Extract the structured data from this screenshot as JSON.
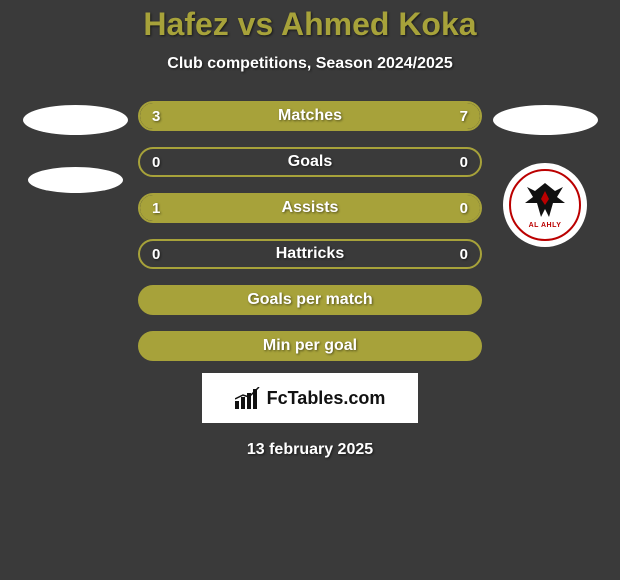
{
  "title": "Hafez vs Ahmed Koka",
  "subtitle": "Club competitions, Season 2024/2025",
  "date": "13 february 2025",
  "brand": "FcTables.com",
  "colors": {
    "accent": "#a7a23a",
    "accent_dark": "#8d8830",
    "background": "#3a3a3a",
    "title_color": "#a7a23a",
    "bar_border": "#a7a23a",
    "bar_fill": "#a7a23a",
    "text": "#ffffff"
  },
  "bars": [
    {
      "label": "Matches",
      "left": "3",
      "right": "7",
      "left_pct": 30,
      "right_pct": 70
    },
    {
      "label": "Goals",
      "left": "0",
      "right": "0",
      "left_pct": 0,
      "right_pct": 0
    },
    {
      "label": "Assists",
      "left": "1",
      "right": "0",
      "left_pct": 100,
      "right_pct": 0
    },
    {
      "label": "Hattricks",
      "left": "0",
      "right": "0",
      "left_pct": 0,
      "right_pct": 0
    },
    {
      "label": "Goals per match",
      "left": "",
      "right": "",
      "left_pct": 100,
      "right_pct": 0,
      "full": true
    },
    {
      "label": "Min per goal",
      "left": "",
      "right": "",
      "left_pct": 100,
      "right_pct": 0,
      "full": true
    }
  ],
  "left_player": {
    "name": "Hafez"
  },
  "right_player": {
    "name": "Ahmed Koka",
    "club": "AL AHLY"
  }
}
